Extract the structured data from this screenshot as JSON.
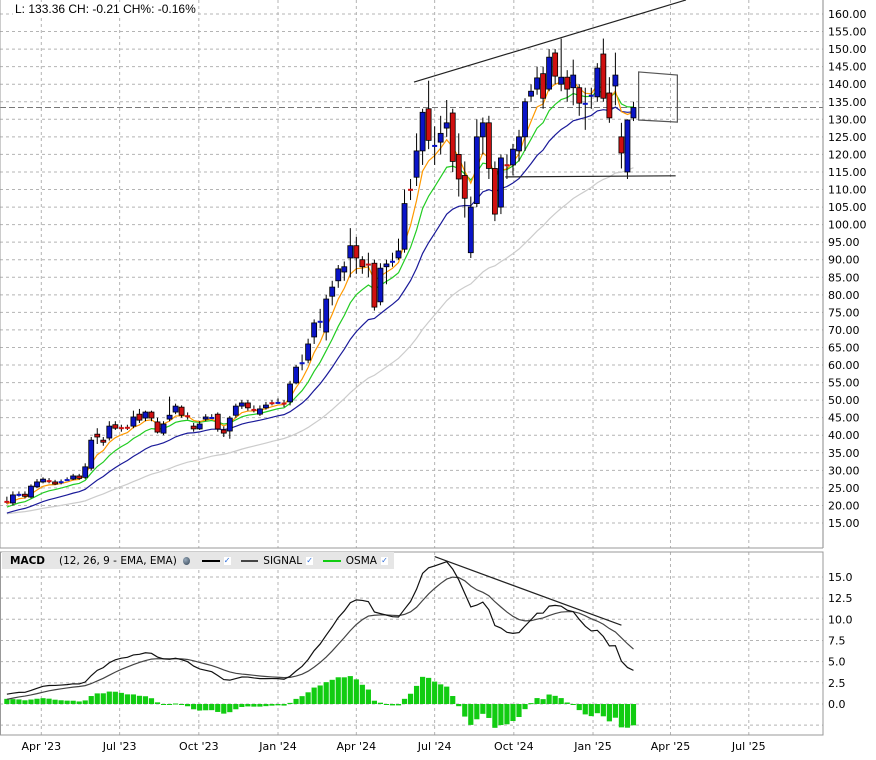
{
  "info": {
    "text": "L: 133.36 CH: -0.21 CH%: -0.16%"
  },
  "macd_legend": {
    "title": "MACD",
    "params": "(12, 26, 9 - EMA, EMA)",
    "signal_label": "SIGNAL",
    "osma_label": "OSMA",
    "check_glyph": "✓"
  },
  "colors": {
    "up": "#0a14c8",
    "down": "#d01010",
    "ma_fast": "#ff9900",
    "ma_mid": "#22cc22",
    "ma_slow": "#1a1a99",
    "ma_long": "#cccccc",
    "macd": "#111111",
    "signal": "#444444",
    "osma": "#11cc11"
  },
  "chart_data": [
    {
      "type": "candlestick",
      "interval": "weekly",
      "last_price": 133.36,
      "y_ticks": [
        "160.00",
        "155.00",
        "150.00",
        "145.00",
        "140.00",
        "135.00",
        "130.00",
        "125.00",
        "120.00",
        "115.00",
        "110.00",
        "105.00",
        "100.00",
        "95.00",
        "90.00",
        "85.00",
        "80.00",
        "75.00",
        "70.00",
        "65.00",
        "60.00",
        "55.00",
        "50.00",
        "45.00",
        "40.00",
        "35.00",
        "30.00",
        "25.00",
        "20.00",
        "15.00"
      ],
      "ylim": [
        15,
        160
      ],
      "x_ticks": [
        {
          "label": "Apr '23",
          "date": "2023-04-01"
        },
        {
          "label": "Jul '23",
          "date": "2023-07-01"
        },
        {
          "label": "Oct '23",
          "date": "2023-10-01"
        },
        {
          "label": "Jan '24",
          "date": "2024-01-01"
        },
        {
          "label": "Apr '24",
          "date": "2024-04-01"
        },
        {
          "label": "Jul '24",
          "date": "2024-07-01"
        },
        {
          "label": "Oct '24",
          "date": "2024-10-01"
        },
        {
          "label": "Jan '25",
          "date": "2025-01-01"
        },
        {
          "label": "Apr '25",
          "date": "2025-04-01"
        },
        {
          "label": "Jul '25",
          "date": "2025-07-01"
        }
      ],
      "grid": true,
      "candles_columns": [
        "date",
        "open",
        "high",
        "low",
        "close"
      ],
      "candles": [
        [
          "2023-02-20",
          21.3,
          22.5,
          20.5,
          21
        ],
        [
          "2023-02-27",
          20.7,
          24,
          20,
          23
        ],
        [
          "2023-03-06",
          23,
          24,
          22.5,
          23.3
        ],
        [
          "2023-03-13",
          23.2,
          24,
          22,
          22.6
        ],
        [
          "2023-03-20",
          22.4,
          26,
          22,
          25.5
        ],
        [
          "2023-03-27",
          25.3,
          27.5,
          25,
          26.7
        ],
        [
          "2023-04-03",
          26.7,
          28,
          26.3,
          27.5
        ],
        [
          "2023-04-10",
          27.2,
          27.8,
          26.3,
          26.7
        ],
        [
          "2023-04-17",
          26.7,
          27.3,
          25.8,
          26.1
        ],
        [
          "2023-04-24",
          26.4,
          27.4,
          26,
          26.9
        ],
        [
          "2023-05-01",
          27.3,
          28,
          27,
          27.5
        ],
        [
          "2023-05-08",
          27.5,
          29,
          27.2,
          28.4
        ],
        [
          "2023-05-15",
          28.4,
          29,
          27.3,
          27.7
        ],
        [
          "2023-05-22",
          28,
          32,
          27.5,
          31
        ],
        [
          "2023-05-29",
          30.6,
          39.5,
          30,
          38.6
        ],
        [
          "2023-06-05",
          40.3,
          42,
          37.5,
          39.5
        ],
        [
          "2023-06-12",
          38.6,
          39.5,
          37,
          38
        ],
        [
          "2023-06-19",
          39.2,
          44,
          38.5,
          42.6
        ],
        [
          "2023-06-26",
          43,
          44,
          41.5,
          42
        ],
        [
          "2023-07-03",
          42.3,
          43,
          41,
          41.8
        ],
        [
          "2023-07-10",
          42.4,
          43,
          41.5,
          42
        ],
        [
          "2023-07-17",
          42.6,
          47,
          42,
          45.2
        ],
        [
          "2023-07-24",
          46,
          47.5,
          43.5,
          44.3
        ],
        [
          "2023-07-31",
          44.9,
          47,
          44,
          46.6
        ],
        [
          "2023-08-07",
          46.6,
          47,
          44,
          44.9
        ],
        [
          "2023-08-14",
          43.8,
          45,
          40.5,
          40.9
        ],
        [
          "2023-08-21",
          40.6,
          44,
          40,
          43.2
        ],
        [
          "2023-08-28",
          44.6,
          51,
          44,
          45.7
        ],
        [
          "2023-09-04",
          46.6,
          49,
          46,
          48.3
        ],
        [
          "2023-09-11",
          48,
          48.5,
          45,
          45.7
        ],
        [
          "2023-09-18",
          45.7,
          46.5,
          44.5,
          45.2
        ],
        [
          "2023-09-25",
          42.6,
          43.5,
          41,
          41.8
        ],
        [
          "2023-10-02",
          41.8,
          44,
          41.5,
          43.2
        ],
        [
          "2023-10-09",
          44.6,
          46,
          44,
          45.2
        ],
        [
          "2023-10-16",
          45,
          46,
          44.6,
          45.2
        ],
        [
          "2023-10-23",
          46,
          46.5,
          41,
          41.8
        ],
        [
          "2023-10-30",
          41.5,
          42.5,
          39.5,
          40.6
        ],
        [
          "2023-11-06",
          41.2,
          45.5,
          39,
          44.9
        ],
        [
          "2023-11-13",
          45.7,
          49,
          45,
          48.3
        ],
        [
          "2023-11-20",
          48.3,
          50,
          47.5,
          49.2
        ],
        [
          "2023-11-27",
          49.2,
          50,
          47,
          47.8
        ],
        [
          "2023-12-04",
          47.5,
          48.5,
          46.5,
          47
        ],
        [
          "2023-12-11",
          46,
          48.5,
          45.5,
          47.5
        ],
        [
          "2023-12-18",
          47.8,
          49.5,
          47.3,
          48.6
        ],
        [
          "2023-12-25",
          49.4,
          50,
          48.5,
          49.2
        ],
        [
          "2024-01-01",
          49.3,
          50.5,
          49,
          49.5
        ],
        [
          "2024-01-08",
          49.3,
          50,
          48,
          49
        ],
        [
          "2024-01-15",
          49.5,
          55.5,
          48.5,
          54.6
        ],
        [
          "2024-01-22",
          54.9,
          60,
          54.5,
          59.4
        ],
        [
          "2024-01-29",
          60.3,
          63,
          58.5,
          60.8
        ],
        [
          "2024-02-05",
          61.4,
          67.5,
          60.5,
          66
        ],
        [
          "2024-02-12",
          68,
          73,
          66,
          72
        ],
        [
          "2024-02-19",
          72.3,
          76,
          70.5,
          72.6
        ],
        [
          "2024-02-26",
          69.4,
          80,
          67,
          78.8
        ],
        [
          "2024-03-04",
          79.6,
          84,
          77,
          82.2
        ],
        [
          "2024-03-11",
          84,
          88.5,
          82,
          87.4
        ],
        [
          "2024-03-18",
          86.5,
          89.5,
          84,
          88
        ],
        [
          "2024-03-25",
          90.5,
          99,
          85,
          94
        ],
        [
          "2024-04-01",
          94,
          96.5,
          86,
          90.5
        ],
        [
          "2024-04-08",
          90,
          91,
          86,
          88
        ],
        [
          "2024-04-15",
          88.9,
          92,
          85,
          88.7
        ],
        [
          "2024-04-22",
          89,
          90,
          75.5,
          76.5
        ],
        [
          "2024-04-29",
          78,
          89,
          77,
          87.6
        ],
        [
          "2024-05-06",
          88,
          90,
          83,
          88.8
        ],
        [
          "2024-05-13",
          89.4,
          92,
          88,
          89.7
        ],
        [
          "2024-05-20",
          90.5,
          96,
          90,
          92.5
        ],
        [
          "2024-05-27",
          93,
          110,
          92,
          106
        ],
        [
          "2024-06-03",
          110.2,
          113,
          107,
          109.8
        ],
        [
          "2024-06-10",
          113.5,
          126,
          111,
          121
        ],
        [
          "2024-06-17",
          121,
          133,
          117,
          132
        ],
        [
          "2024-06-24",
          133,
          141,
          121.5,
          124
        ],
        [
          "2024-07-01",
          122.3,
          128,
          117,
          122.7
        ],
        [
          "2024-07-08",
          123.5,
          131,
          120,
          126
        ],
        [
          "2024-07-15",
          127.5,
          135.5,
          125,
          129
        ],
        [
          "2024-07-22",
          131.8,
          133,
          115,
          118
        ],
        [
          "2024-07-29",
          120,
          126,
          108,
          113
        ],
        [
          "2024-08-05",
          114,
          118,
          102,
          107.5
        ],
        [
          "2024-08-12",
          92,
          108,
          90.5,
          105
        ],
        [
          "2024-08-19",
          106,
          130,
          105,
          125
        ],
        [
          "2024-08-26",
          125,
          130.5,
          120,
          129
        ],
        [
          "2024-09-02",
          129,
          131,
          113,
          116
        ],
        [
          "2024-09-09",
          116,
          118,
          101,
          103
        ],
        [
          "2024-09-16",
          105,
          120,
          103,
          119
        ],
        [
          "2024-09-23",
          117.2,
          120,
          113,
          116.8
        ],
        [
          "2024-09-30",
          117,
          123,
          114,
          121.5
        ],
        [
          "2024-10-07",
          121,
          127,
          118,
          125
        ],
        [
          "2024-10-14",
          125,
          136,
          121,
          135
        ],
        [
          "2024-10-21",
          136.6,
          140,
          135,
          138
        ],
        [
          "2024-10-28",
          138.6,
          145,
          137,
          141.8
        ],
        [
          "2024-11-04",
          143,
          145,
          133,
          136
        ],
        [
          "2024-11-11",
          138.6,
          150,
          138,
          147.7
        ],
        [
          "2024-11-18",
          148.9,
          150,
          140,
          142.3
        ],
        [
          "2024-11-25",
          140,
          153,
          138,
          142
        ],
        [
          "2024-12-02",
          142,
          144,
          135,
          138.6
        ],
        [
          "2024-12-09",
          139,
          147,
          134,
          142.6
        ],
        [
          "2024-12-16",
          139,
          140,
          131,
          134.6
        ],
        [
          "2024-12-23",
          134.4,
          139,
          127,
          134.7
        ],
        [
          "2024-12-30",
          136.5,
          139,
          133,
          137
        ],
        [
          "2025-01-06",
          136.4,
          146,
          135,
          144.6
        ],
        [
          "2025-01-13",
          148.6,
          153,
          135,
          136
        ],
        [
          "2025-01-20",
          137.5,
          142,
          129,
          130.4
        ],
        [
          "2025-01-27",
          139.5,
          149,
          134,
          142.6
        ],
        [
          "2025-02-03",
          125,
          129,
          116,
          120.4
        ],
        [
          "2025-02-10",
          115,
          130,
          113,
          129.8
        ],
        [
          "2025-02-17",
          130.4,
          135,
          129.5,
          133.36
        ]
      ],
      "annotations": [
        {
          "type": "trendline",
          "points": [
            [
              "2024-06-07",
              140.6
            ],
            [
              "2025-04-19",
              164
            ]
          ]
        },
        {
          "type": "trendline",
          "points": [
            [
              "2024-09-21",
              113.6
            ],
            [
              "2025-04-07",
              113.9
            ]
          ]
        },
        {
          "type": "box",
          "points": [
            [
              "2025-02-23",
              143.5
            ],
            [
              "2025-04-09",
              142.6
            ],
            [
              "2025-04-09",
              129.2
            ],
            [
              "2025-02-23",
              129.8
            ]
          ]
        }
      ]
    },
    {
      "type": "macd",
      "title": "MACD",
      "params": "(12, 26, 9 - EMA, EMA)",
      "series": [
        {
          "name": "MACD"
        },
        {
          "name": "SIGNAL"
        },
        {
          "name": "OSMA"
        }
      ],
      "y_ticks": [
        "15.0",
        "12.5",
        "10.0",
        "7.5",
        "5.0",
        "2.5",
        "0.0"
      ],
      "ylim": [
        -3.7,
        18
      ],
      "annotations": [
        {
          "type": "trendline",
          "points": [
            [
              "2024-07-01",
              17.4
            ],
            [
              "2025-02-03",
              9.3
            ]
          ]
        }
      ]
    }
  ]
}
